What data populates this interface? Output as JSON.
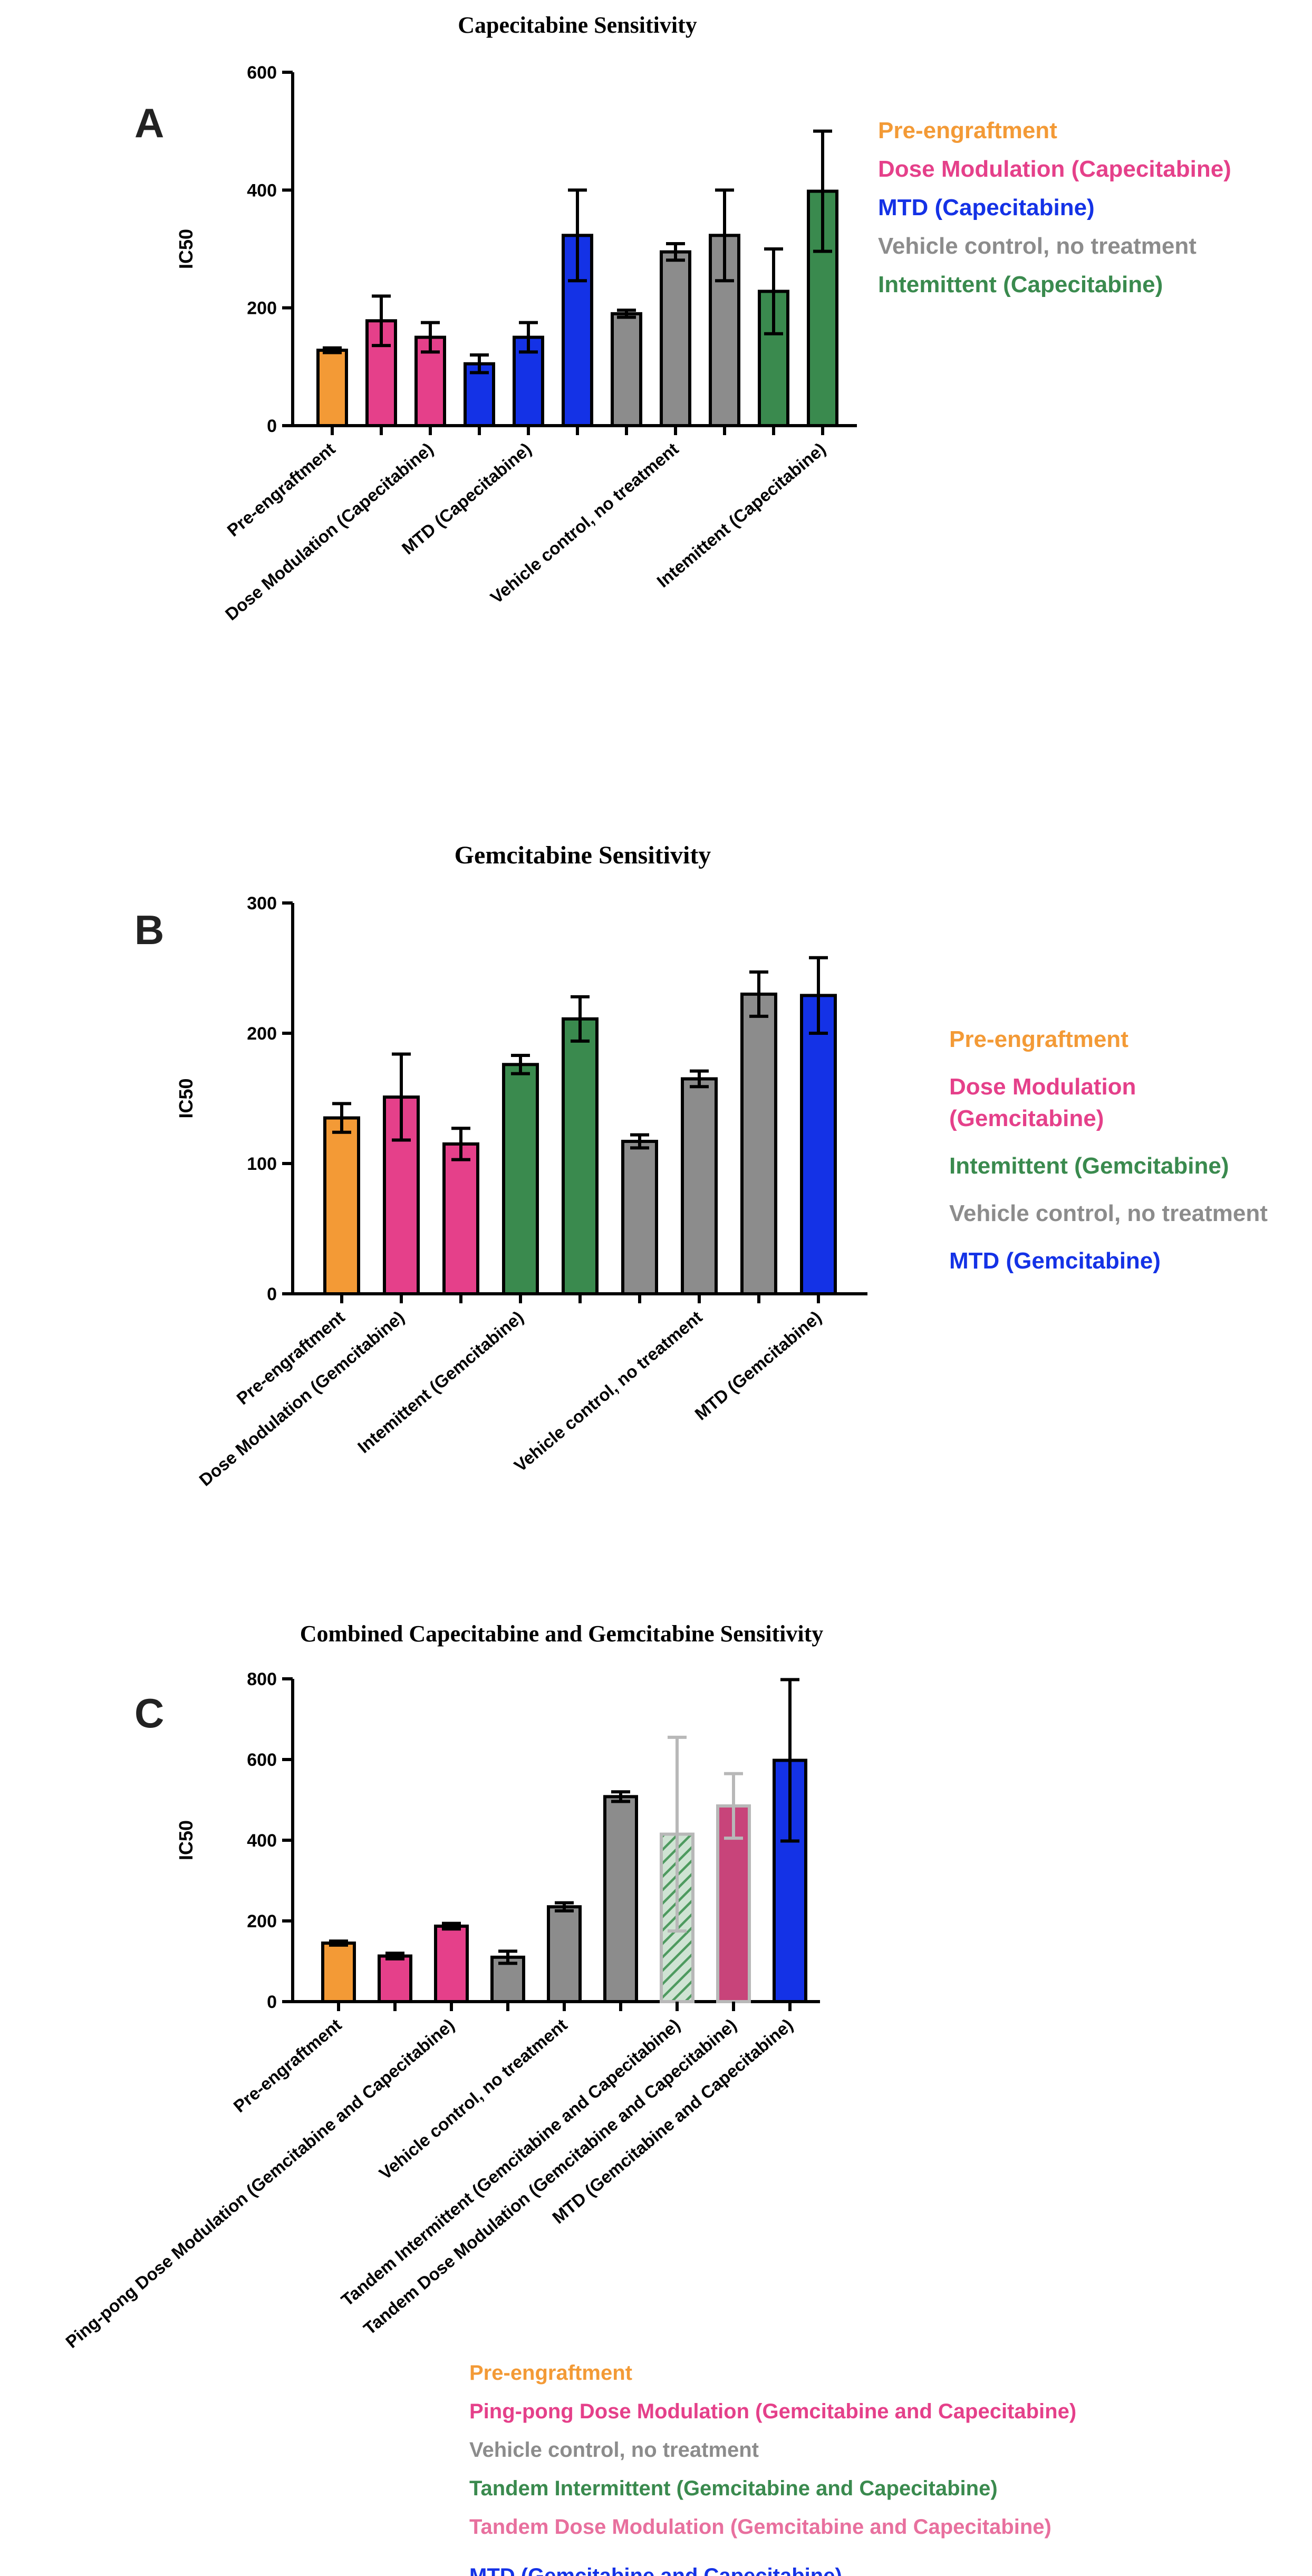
{
  "panels": [
    {
      "letter": "A",
      "chart_data": {
        "type": "bar",
        "title": "Capecitabine Sensitivity",
        "ylabel": "IC50",
        "xlabel": "",
        "ylim": [
          0,
          600
        ],
        "yticks": [
          0,
          200,
          400,
          600
        ],
        "grid": false,
        "legend_position": "right",
        "bars": [
          {
            "value": 128,
            "err": 4,
            "group": "pre",
            "pattern": "solid"
          },
          {
            "value": 178,
            "err": 42,
            "group": "dose",
            "pattern": "solid"
          },
          {
            "value": 150,
            "err": 25,
            "group": "dose",
            "pattern": "solid"
          },
          {
            "value": 105,
            "err": 15,
            "group": "mtd",
            "pattern": "solid"
          },
          {
            "value": 150,
            "err": 25,
            "group": "mtd",
            "pattern": "solid"
          },
          {
            "value": 323,
            "err": 77,
            "group": "mtd",
            "pattern": "solid"
          },
          {
            "value": 190,
            "err": 6,
            "group": "veh",
            "pattern": "solid"
          },
          {
            "value": 295,
            "err": 14,
            "group": "veh",
            "pattern": "solid"
          },
          {
            "value": 323,
            "err": 77,
            "group": "veh",
            "pattern": "solid"
          },
          {
            "value": 228,
            "err": 72,
            "group": "int",
            "pattern": "solid"
          },
          {
            "value": 398,
            "err": 102,
            "group": "int",
            "pattern": "solid"
          }
        ],
        "category_labels": [
          {
            "text": "Pre-engraftment",
            "bar": 0
          },
          {
            "text": "Dose Modulation (Capecitabine)",
            "bar": 2
          },
          {
            "text": "MTD  (Capecitabine)",
            "bar": 4
          },
          {
            "text": "Vehicle control, no treatment",
            "bar": 7
          },
          {
            "text": "Intemittent  (Capecitabine)",
            "bar": 10
          }
        ],
        "legend": [
          {
            "text": "Pre-engraftment",
            "color": "#F39A36"
          },
          {
            "text": "Dose Modulation (Capecitabine)",
            "color": "#E5408A"
          },
          {
            "text": "MTD  (Capecitabine)",
            "color": "#1432E6"
          },
          {
            "text": "Vehicle control, no treatment",
            "color": "#8C8C8C"
          },
          {
            "text": "Intemittent  (Capecitabine)",
            "color": "#3A8A4E"
          }
        ]
      }
    },
    {
      "letter": "B",
      "chart_data": {
        "type": "bar",
        "title": "Gemcitabine Sensitivity",
        "ylabel": "IC50",
        "xlabel": "",
        "ylim": [
          0,
          300
        ],
        "yticks": [
          0,
          100,
          200,
          300
        ],
        "grid": false,
        "legend_position": "right",
        "bars": [
          {
            "value": 135,
            "err": 11,
            "group": "pre",
            "pattern": "solid"
          },
          {
            "value": 151,
            "err": 33,
            "group": "dose",
            "pattern": "solid"
          },
          {
            "value": 115,
            "err": 12,
            "group": "dose",
            "pattern": "solid"
          },
          {
            "value": 176,
            "err": 7,
            "group": "int",
            "pattern": "solid"
          },
          {
            "value": 211,
            "err": 17,
            "group": "int",
            "pattern": "solid"
          },
          {
            "value": 117,
            "err": 5,
            "group": "veh",
            "pattern": "solid"
          },
          {
            "value": 165,
            "err": 6,
            "group": "veh",
            "pattern": "solid"
          },
          {
            "value": 230,
            "err": 17,
            "group": "veh",
            "pattern": "solid"
          },
          {
            "value": 229,
            "err": 29,
            "group": "mtd",
            "pattern": "solid"
          }
        ],
        "category_labels": [
          {
            "text": "Pre-engraftment",
            "bar": 0
          },
          {
            "text": "Dose Modulation (Gemcitabine)",
            "bar": 1
          },
          {
            "text": "Intemittent (Gemcitabine)",
            "bar": 3
          },
          {
            "text": "Vehicle control, no treatment",
            "bar": 6
          },
          {
            "text": "MTD  (Gemcitabine)",
            "bar": 8
          }
        ],
        "legend": [
          {
            "text": "Pre-engraftment",
            "color": "#F39A36"
          },
          {
            "text": "Dose Modulation\n(Gemcitabine)",
            "color": "#E5408A"
          },
          {
            "text": "Intemittent (Gemcitabine)",
            "color": "#3A8A4E"
          },
          {
            "text": "Vehicle control, no treatment",
            "color": "#8C8C8C"
          },
          {
            "text": "MTD  (Gemcitabine)",
            "color": "#1432E6"
          }
        ]
      }
    },
    {
      "letter": "C",
      "chart_data": {
        "type": "bar",
        "title": "Combined Capecitabine and Gemcitabine Sensitivity",
        "ylabel": "IC50",
        "xlabel": "",
        "ylim": [
          0,
          800
        ],
        "yticks": [
          0,
          200,
          400,
          600,
          800
        ],
        "grid": false,
        "legend_position": "bottom",
        "bars": [
          {
            "value": 145,
            "err": 5,
            "group": "pre",
            "pattern": "solid"
          },
          {
            "value": 113,
            "err": 7,
            "group": "dose",
            "pattern": "solid"
          },
          {
            "value": 187,
            "err": 7,
            "group": "dose",
            "pattern": "solid"
          },
          {
            "value": 110,
            "err": 15,
            "group": "veh",
            "pattern": "solid"
          },
          {
            "value": 235,
            "err": 10,
            "group": "veh",
            "pattern": "solid"
          },
          {
            "value": 508,
            "err": 12,
            "group": "veh",
            "pattern": "solid"
          },
          {
            "value": 415,
            "err": 240,
            "group": "tint",
            "pattern": "hatched"
          },
          {
            "value": 485,
            "err": 80,
            "group": "tdose",
            "pattern": "solid"
          },
          {
            "value": 598,
            "err": 200,
            "group": "mtd",
            "pattern": "solid"
          }
        ],
        "category_labels": [
          {
            "text": "Pre-engraftment",
            "bar": 0
          },
          {
            "text": "Ping-pong Dose Modulation  (Gemcitabine and Capecitabine)",
            "bar": 2
          },
          {
            "text": "Vehicle control, no treatment",
            "bar": 4
          },
          {
            "text": "Tandem Intermittent (Gemcitabine and Capecitabine)",
            "bar": 6
          },
          {
            "text": "Tandem Dose Modulation  (Gemcitabine and Capecitabine)",
            "bar": 7
          },
          {
            "text": "MTD   (Gemcitabine and Capecitabine)",
            "bar": 8
          }
        ],
        "legend": [
          {
            "text": "Pre-engraftment",
            "color": "#F39A36"
          },
          {
            "text": "Ping-pong Dose Modulation  (Gemcitabine and Capecitabine)",
            "color": "#E5408A"
          },
          {
            "text": "Vehicle control, no treatment",
            "color": "#8C8C8C"
          },
          {
            "text": "Tandem Intermittent (Gemcitabine and Capecitabine)",
            "color": "#3A8A4E"
          },
          {
            "text": "Tandem Dose Modulation  (Gemcitabine and Capecitabine)",
            "color": "#E8709E"
          },
          {
            "text": "MTD   (Gemcitabine and Capecitabine)",
            "color": "#1432E6"
          }
        ]
      }
    }
  ],
  "colors": {
    "pre": "#F39A36",
    "dose": "#E5408A",
    "mtd": "#1432E6",
    "veh": "#8C8C8C",
    "int": "#3A8A4E",
    "tint": "#4E9A5F",
    "tdose": "#C8447A",
    "axis": "#000000"
  }
}
